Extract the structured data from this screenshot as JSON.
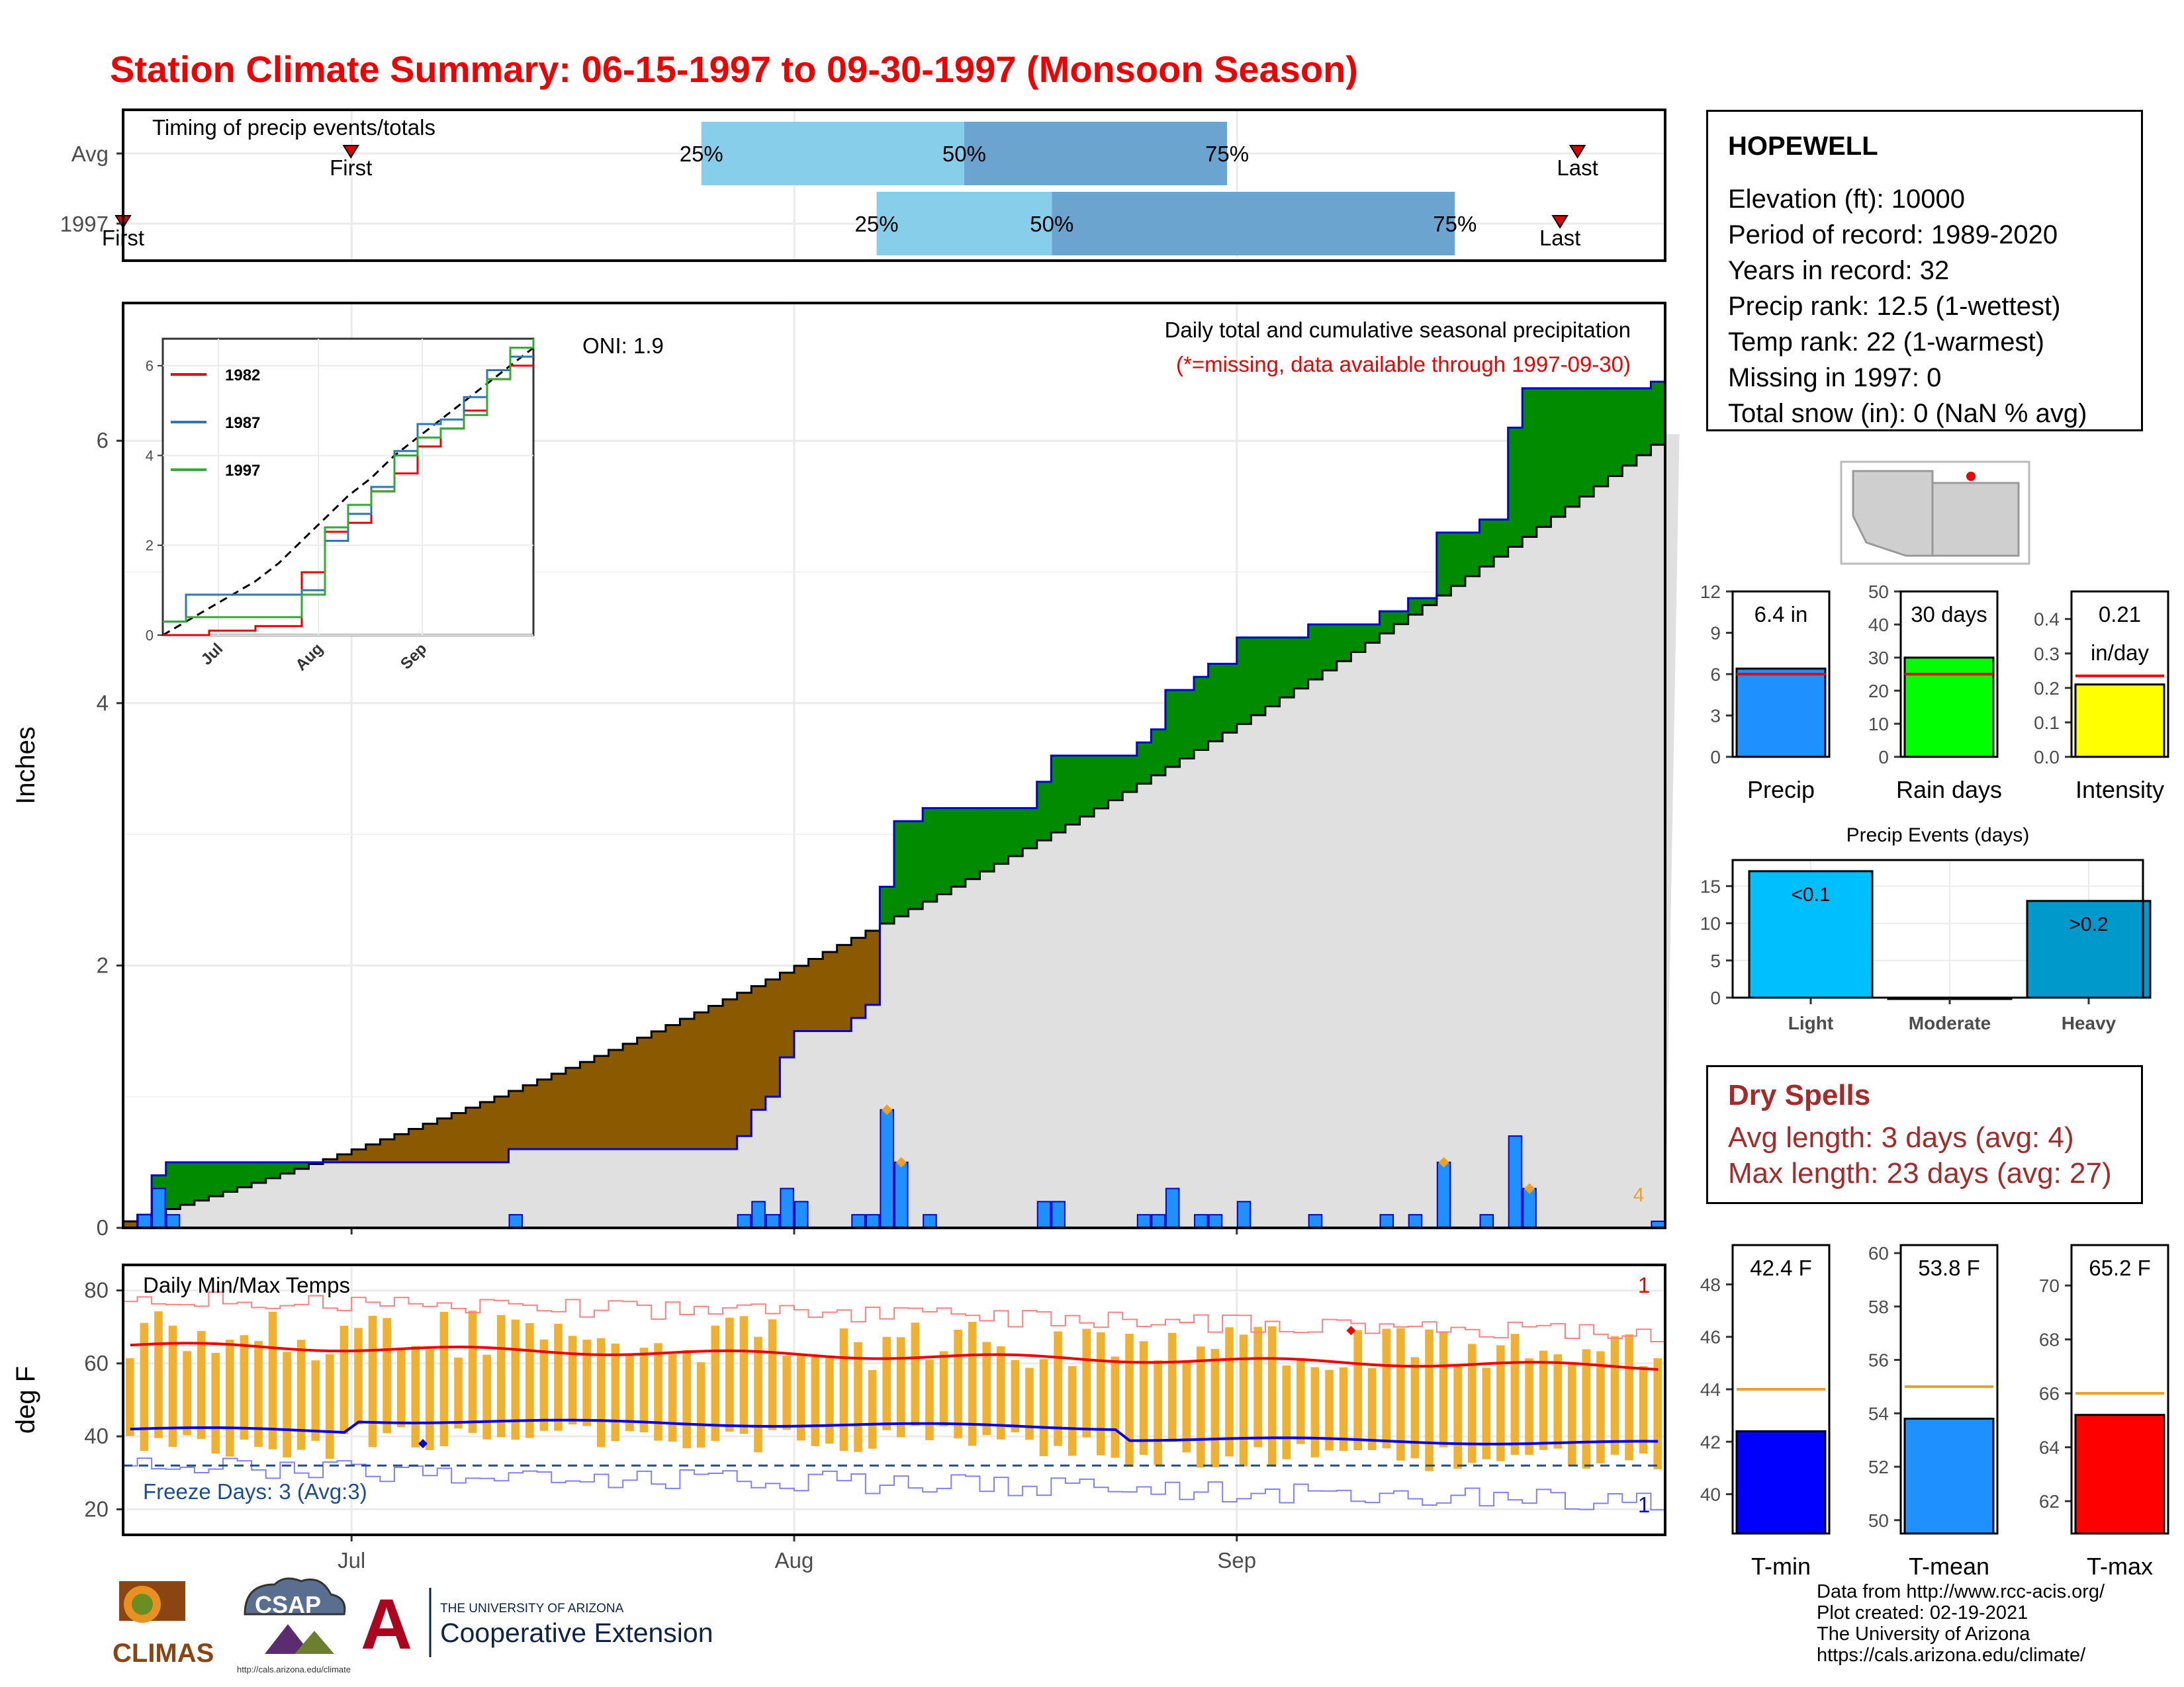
{
  "title": "Station Climate Summary: 06-15-1997 to 09-30-1997 (Monsoon Season)",
  "station": {
    "name": "HOPEWELL",
    "lines": [
      "Elevation (ft): 10000",
      "Period of record: 1989-2020",
      "Years in record: 32",
      "Precip rank: 12.5 (1-wettest)",
      "Temp rank: 22 (1-warmest)",
      "Missing in 1997: 0",
      "Total snow (in): 0 (NaN % avg)"
    ]
  },
  "dry_spells": {
    "title": "Dry Spells",
    "avg": "Avg length: 3 days (avg: 4)",
    "max": "Max length: 23 days (avg: 27)"
  },
  "credits": [
    "Data from http://www.rcc-acis.org/",
    "Plot created: 02-19-2021",
    "The University of Arizona",
    "https://cals.arizona.edu/climate/"
  ],
  "logos": {
    "climas": "CLIMAS",
    "csap": "CSAP",
    "csap_url": "http://cals.arizona.edu/climate",
    "ua_line1": "THE UNIVERSITY OF ARIZONA",
    "ua_line2": "Cooperative Extension",
    "ua_letter": "A"
  },
  "colors": {
    "title": "#ee0000",
    "brown": "#8B5A00",
    "green": "#008B00",
    "grey_fill": "#E0E0E0",
    "blue_bar": "#1E90FF",
    "orange": "#F0B030",
    "red_line": "#ff0000",
    "blue_line": "#0000ee"
  },
  "chart_data": [
    {
      "id": "timing",
      "type": "bar",
      "title": "Timing of precip events/totals",
      "rows": [
        {
          "label": "Avg",
          "first": "First",
          "last": "Last",
          "q25_day": 33,
          "q50_day": 48,
          "q75_day": 63,
          "first_day": 13,
          "last_day": 83
        },
        {
          "label": "1997",
          "first": "First",
          "last": "Last",
          "q25_day": 43,
          "q50_day": 53,
          "q75_day": 76,
          "first_day": 0,
          "last_day": 82
        }
      ],
      "quartile_labels": [
        "25%",
        "50%",
        "75%"
      ],
      "x_domain": [
        0,
        88
      ]
    },
    {
      "id": "precip",
      "type": "area",
      "subtitle": "Daily total and cumulative seasonal precipitation",
      "note": "(*=missing, data available through 1997-09-30)",
      "oni": "ONI: 1.9",
      "ylabel": "Inches",
      "yticks": [
        0,
        2,
        4,
        6
      ],
      "ylim": [
        0,
        7.05
      ],
      "xlim": [
        0,
        108
      ],
      "xticks": [
        {
          "label": "Jul",
          "day": 16
        },
        {
          "label": "Aug",
          "day": 47
        },
        {
          "label": "Sep",
          "day": 78
        }
      ],
      "count_label": "4",
      "avg_start": 0.05,
      "avg_end": 6.05,
      "obs_daily": [
        [
          1,
          0.1
        ],
        [
          2,
          0.3
        ],
        [
          3,
          0.1
        ],
        [
          27,
          0.1
        ],
        [
          43,
          0.1
        ],
        [
          44,
          0.2
        ],
        [
          45,
          0.1
        ],
        [
          46,
          0.3
        ],
        [
          47,
          0.2
        ],
        [
          51,
          0.1
        ],
        [
          52,
          0.1
        ],
        [
          53,
          0.9
        ],
        [
          54,
          0.5
        ],
        [
          56,
          0.1
        ],
        [
          64,
          0.2
        ],
        [
          65,
          0.2
        ],
        [
          71,
          0.1
        ],
        [
          72,
          0.1
        ],
        [
          73,
          0.3
        ],
        [
          75,
          0.1
        ],
        [
          76,
          0.1
        ],
        [
          78,
          0.2
        ],
        [
          83,
          0.1
        ],
        [
          88,
          0.1
        ],
        [
          90,
          0.1
        ],
        [
          92,
          0.5
        ],
        [
          95,
          0.1
        ],
        [
          97,
          0.7
        ],
        [
          98,
          0.3
        ],
        [
          107,
          0.05
        ]
      ],
      "extreme_marks": [
        [
          53,
          0.9
        ],
        [
          54,
          0.5
        ],
        [
          92,
          0.5
        ],
        [
          98,
          0.3
        ]
      ],
      "inset": {
        "series": [
          {
            "name": "1982",
            "color": "#ee0000",
            "values": [
              0,
              0,
              0.1,
              0.1,
              0.2,
              0.2,
              1.4,
              2.3,
              2.5,
              3.2,
              3.6,
              4.2,
              4.6,
              5.0,
              5.7,
              6.0,
              6.0
            ]
          },
          {
            "name": "1987",
            "color": "#2a78b8",
            "values": [
              0.3,
              0.9,
              0.9,
              0.9,
              0.9,
              0.9,
              1.0,
              2.1,
              2.7,
              3.3,
              4.1,
              4.7,
              4.8,
              5.3,
              5.9,
              6.2,
              6.2
            ]
          },
          {
            "name": "1997",
            "color": "#33aa33",
            "values": [
              0.3,
              0.4,
              0.4,
              0.4,
              0.4,
              0.4,
              0.9,
              2.4,
              2.9,
              3.2,
              4.0,
              4.4,
              4.6,
              4.9,
              5.7,
              6.4,
              6.6
            ]
          }
        ],
        "avg_line": [
          0,
          0.3,
          0.6,
          0.9,
          1.2,
          1.6,
          2.1,
          2.6,
          3.1,
          3.5,
          4.0,
          4.4,
          4.8,
          5.2,
          5.6,
          6.0,
          6.4
        ],
        "xticks": [
          {
            "label": "Jul",
            "pos": 0.15
          },
          {
            "label": "Aug",
            "pos": 0.42
          },
          {
            "label": "Sep",
            "pos": 0.7
          }
        ],
        "yticks": [
          0,
          2,
          4,
          6
        ]
      }
    },
    {
      "id": "temps",
      "type": "line",
      "title": "Daily Min/Max Temps",
      "ylabel": "deg F",
      "yticks": [
        20,
        40,
        60,
        80
      ],
      "ylim": [
        13,
        87
      ],
      "freeze_label": "Freeze Days: 3 (Avg:3)",
      "freeze_line": 32,
      "top_count": "1",
      "bottom_count": "1",
      "xticks": [
        {
          "label": "Jul",
          "day": 16
        },
        {
          "label": "Aug",
          "day": 47
        },
        {
          "label": "Sep",
          "day": 78
        }
      ],
      "avg_max": {
        "start": 65,
        "end": 59
      },
      "avg_min": {
        "start": 42,
        "end": 38
      }
    },
    {
      "id": "bar_totals",
      "type": "bar",
      "panels": [
        {
          "label": "Precip",
          "value_text": "6.4 in",
          "value": 6.4,
          "avg": 6.0,
          "ymax": 12,
          "yticks": [
            0,
            3,
            6,
            9,
            12
          ],
          "color": "#1E90FF"
        },
        {
          "label": "Rain days",
          "value_text": "30 days",
          "value": 30,
          "avg": 25,
          "ymax": 50,
          "yticks": [
            0,
            10,
            20,
            30,
            40,
            50
          ],
          "color": "#00FF00"
        },
        {
          "label": "Intensity",
          "value_text": "0.21",
          "value_text2": "in/day",
          "value": 0.21,
          "avg": 0.235,
          "ymax": 0.48,
          "yticks": [
            "0.0",
            "0.1",
            "0.2",
            "0.3",
            "0.4"
          ],
          "ytickvals": [
            0,
            0.1,
            0.2,
            0.3,
            0.4
          ],
          "color": "#FFFF00"
        }
      ]
    },
    {
      "id": "events",
      "type": "bar",
      "title": "Precip Events (days)",
      "categories": [
        "Light",
        "Moderate",
        "Heavy"
      ],
      "values": [
        17,
        0,
        13
      ],
      "bar_labels": [
        "<0.1",
        "",
        ">0.2"
      ],
      "yticks": [
        0,
        5,
        10,
        15
      ],
      "ylim": [
        0,
        18.5
      ],
      "colors": [
        "#00BFFF",
        "#1E90FF",
        "#0099CC"
      ]
    },
    {
      "id": "temp_bars",
      "type": "bar",
      "panels": [
        {
          "label": "T-min",
          "value_text": "42.4 F",
          "value": 42.4,
          "avg": 44,
          "ylim": [
            38.5,
            49.5
          ],
          "yticks": [
            40,
            42,
            44,
            46,
            48
          ],
          "color": "#0000FF"
        },
        {
          "label": "T-mean",
          "value_text": "53.8 F",
          "value": 53.8,
          "avg": 55,
          "ylim": [
            49.5,
            60.3
          ],
          "yticks": [
            50,
            52,
            54,
            56,
            58,
            60
          ],
          "color": "#1E90FF"
        },
        {
          "label": "T-max",
          "value_text": "65.2 F",
          "value": 65.2,
          "avg": 66,
          "ylim": [
            60.8,
            71.5
          ],
          "yticks": [
            62,
            64,
            66,
            68,
            70
          ],
          "color": "#FF0000"
        }
      ]
    }
  ]
}
